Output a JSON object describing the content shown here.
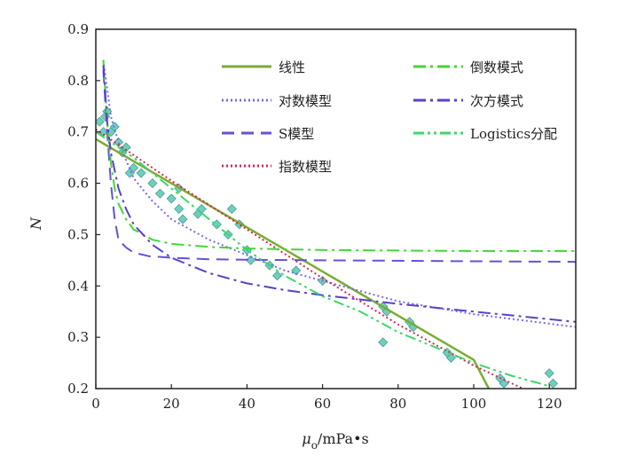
{
  "chart_data": {
    "type": "line",
    "title": "",
    "xlabel": "μ_o/mPa•s",
    "xlabel_parts": {
      "main": "μ",
      "sub": "o",
      "rest": "/mPa•s"
    },
    "ylabel": "N",
    "xlim": [
      0,
      127
    ],
    "ylim": [
      0.2,
      0.9
    ],
    "x_ticks": [
      "0",
      "20",
      "40",
      "60",
      "80",
      "100",
      "120"
    ],
    "y_ticks": [
      "0.2",
      "0.3",
      "0.4",
      "0.5",
      "0.6",
      "0.7",
      "0.8",
      "0.9"
    ],
    "grid": false,
    "legend_position": "top-right",
    "series": [
      {
        "name": "线性",
        "color": "#7aad33",
        "dash": "none",
        "x": [
          0,
          20,
          40,
          60,
          80,
          100,
          104
        ],
        "y": [
          0.686,
          0.6,
          0.514,
          0.428,
          0.342,
          0.256,
          0.2
        ]
      },
      {
        "name": "对数模型",
        "color": "#7b68ee",
        "dash": "dotted",
        "x": [
          2,
          4,
          6,
          10,
          15,
          20,
          30,
          40,
          50,
          60,
          80,
          100,
          127
        ],
        "y": [
          0.84,
          0.73,
          0.68,
          0.61,
          0.565,
          0.53,
          0.49,
          0.46,
          0.43,
          0.41,
          0.37,
          0.345,
          0.32
        ]
      },
      {
        "name": "S模型",
        "color": "#6a4fd8",
        "dash": "dashed",
        "x": [
          2,
          3,
          4,
          5,
          6,
          8,
          10,
          14,
          20,
          30,
          40,
          60,
          80,
          100,
          127
        ],
        "y": [
          0.82,
          0.7,
          0.6,
          0.53,
          0.49,
          0.475,
          0.465,
          0.458,
          0.455,
          0.452,
          0.451,
          0.45,
          0.449,
          0.448,
          0.447
        ]
      },
      {
        "name": "指数模型",
        "color": "#d7264f",
        "dash": "dotted",
        "x": [
          0,
          20,
          40,
          60,
          80,
          100,
          113
        ],
        "y": [
          0.705,
          0.605,
          0.51,
          0.415,
          0.325,
          0.245,
          0.2
        ]
      },
      {
        "name": "倒数模式",
        "color": "#40d830",
        "dash": "dashdot",
        "x": [
          2,
          3,
          4,
          5,
          6,
          8,
          10,
          15,
          20,
          30,
          40,
          60,
          80,
          100,
          127
        ],
        "y": [
          0.84,
          0.72,
          0.64,
          0.59,
          0.56,
          0.53,
          0.51,
          0.49,
          0.482,
          0.476,
          0.473,
          0.47,
          0.469,
          0.468,
          0.468
        ]
      },
      {
        "name": "次方模式",
        "color": "#5b3fcc",
        "dash": "dashdot",
        "x": [
          2,
          3,
          4,
          6,
          8,
          10,
          15,
          20,
          30,
          40,
          50,
          60,
          80,
          100,
          127
        ],
        "y": [
          0.83,
          0.72,
          0.66,
          0.59,
          0.55,
          0.52,
          0.48,
          0.455,
          0.425,
          0.405,
          0.392,
          0.382,
          0.365,
          0.35,
          0.33
        ]
      },
      {
        "name": "Logistics分配",
        "color": "#3ad86a",
        "dash": "dashdotdot",
        "x": [
          0,
          10,
          20,
          30,
          40,
          50,
          60,
          70,
          80,
          90,
          100,
          110,
          120
        ],
        "y": [
          0.7,
          0.65,
          0.59,
          0.53,
          0.47,
          0.42,
          0.38,
          0.35,
          0.31,
          0.28,
          0.25,
          0.225,
          0.205
        ]
      }
    ],
    "scatter": {
      "color": "#6fcfbf",
      "points": [
        [
          1,
          0.72
        ],
        [
          2,
          0.7
        ],
        [
          2.5,
          0.73
        ],
        [
          3,
          0.74
        ],
        [
          4,
          0.7
        ],
        [
          5,
          0.71
        ],
        [
          6,
          0.68
        ],
        [
          7,
          0.66
        ],
        [
          8,
          0.67
        ],
        [
          9,
          0.62
        ],
        [
          10,
          0.63
        ],
        [
          12,
          0.62
        ],
        [
          15,
          0.6
        ],
        [
          17,
          0.58
        ],
        [
          20,
          0.57
        ],
        [
          22,
          0.59
        ],
        [
          22,
          0.55
        ],
        [
          23,
          0.53
        ],
        [
          27,
          0.54
        ],
        [
          28,
          0.55
        ],
        [
          32,
          0.52
        ],
        [
          35,
          0.5
        ],
        [
          36,
          0.55
        ],
        [
          38,
          0.52
        ],
        [
          40,
          0.47
        ],
        [
          41,
          0.45
        ],
        [
          46,
          0.44
        ],
        [
          48,
          0.42
        ],
        [
          53,
          0.43
        ],
        [
          60,
          0.41
        ],
        [
          76,
          0.36
        ],
        [
          77,
          0.35
        ],
        [
          76,
          0.29
        ],
        [
          83,
          0.33
        ],
        [
          84,
          0.32
        ],
        [
          93,
          0.27
        ],
        [
          94,
          0.26
        ],
        [
          107,
          0.22
        ],
        [
          108,
          0.21
        ],
        [
          120,
          0.23
        ],
        [
          121,
          0.21
        ]
      ]
    }
  }
}
